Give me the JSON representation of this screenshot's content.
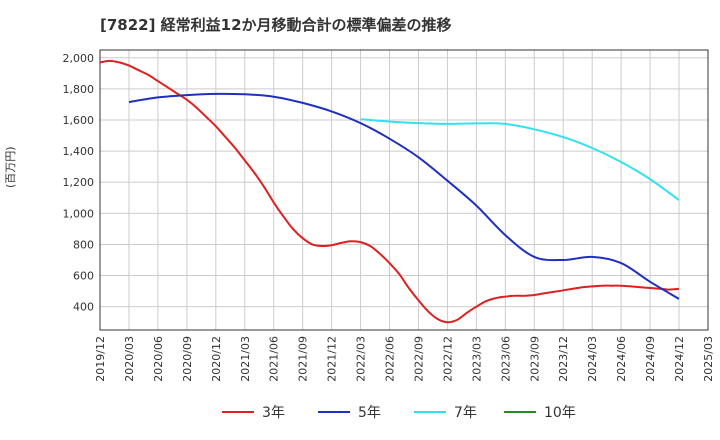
{
  "chart_data": {
    "type": "line",
    "title": "[7822]  経常利益12か月移動合計の標準偏差の推移",
    "ylabel": "(百万円)",
    "xlabel": "",
    "ylim": [
      250,
      2050
    ],
    "yticks": [
      400,
      600,
      800,
      1000,
      1200,
      1400,
      1600,
      1800,
      2000
    ],
    "ytick_labels": [
      "400",
      "600",
      "800",
      "1,000",
      "1,200",
      "1,400",
      "1,600",
      "1,800",
      "2,000"
    ],
    "xticks": [
      "2019/12",
      "2020/03",
      "2020/06",
      "2020/09",
      "2020/12",
      "2021/03",
      "2021/06",
      "2021/09",
      "2021/12",
      "2022/03",
      "2022/06",
      "2022/09",
      "2022/12",
      "2023/03",
      "2023/06",
      "2023/09",
      "2023/12",
      "2024/03",
      "2024/06",
      "2024/09",
      "2024/12",
      "2025/03"
    ],
    "grid": true,
    "legend_position": "bottom",
    "series": [
      {
        "name": "3年",
        "color": "#e02020",
        "x": [
          "2019/12",
          "2020/01",
          "2020/02",
          "2020/03",
          "2020/04",
          "2020/05",
          "2020/06",
          "2020/07",
          "2020/08",
          "2020/09",
          "2020/10",
          "2020/11",
          "2020/12",
          "2021/01",
          "2021/02",
          "2021/03",
          "2021/04",
          "2021/05",
          "2021/06",
          "2021/07",
          "2021/08",
          "2021/09",
          "2021/10",
          "2021/11",
          "2021/12",
          "2022/01",
          "2022/02",
          "2022/03",
          "2022/04",
          "2022/05",
          "2022/06",
          "2022/07",
          "2022/08",
          "2022/09",
          "2022/10",
          "2022/11",
          "2022/12",
          "2023/01",
          "2023/02",
          "2023/03",
          "2023/04",
          "2023/05",
          "2023/06",
          "2023/07",
          "2023/08",
          "2023/09",
          "2023/10",
          "2023/11",
          "2023/12",
          "2024/01",
          "2024/02",
          "2024/03",
          "2024/04",
          "2024/05",
          "2024/06",
          "2024/07",
          "2024/08",
          "2024/09",
          "2024/10",
          "2024/11",
          "2024/12"
        ],
        "values": [
          1970,
          1980,
          1970,
          1950,
          1920,
          1890,
          1850,
          1810,
          1770,
          1730,
          1680,
          1620,
          1560,
          1490,
          1420,
          1340,
          1260,
          1170,
          1070,
          980,
          900,
          840,
          800,
          790,
          795,
          810,
          820,
          815,
          790,
          740,
          680,
          610,
          520,
          440,
          370,
          320,
          300,
          315,
          360,
          400,
          435,
          455,
          465,
          470,
          470,
          475,
          485,
          495,
          505,
          515,
          525,
          530,
          535,
          535,
          535,
          530,
          525,
          520,
          515,
          510,
          515
        ],
        "values_note": ""
      },
      {
        "name": "5年",
        "color": "#1f2fbf",
        "x": [
          "2020/03",
          "2020/06",
          "2020/09",
          "2020/12",
          "2021/03",
          "2021/06",
          "2021/09",
          "2021/12",
          "2022/03",
          "2022/06",
          "2022/09",
          "2022/12",
          "2023/03",
          "2023/06",
          "2023/09",
          "2023/12",
          "2024/03",
          "2024/06",
          "2024/09",
          "2024/12"
        ],
        "values": [
          1715,
          1745,
          1760,
          1768,
          1765,
          1750,
          1710,
          1655,
          1580,
          1480,
          1360,
          1210,
          1050,
          860,
          720,
          700,
          720,
          680,
          560,
          450
        ]
      },
      {
        "name": "7年",
        "color": "#33e0f0",
        "x": [
          "2022/03",
          "2022/06",
          "2022/09",
          "2022/12",
          "2023/03",
          "2023/06",
          "2023/09",
          "2023/12",
          "2024/03",
          "2024/06",
          "2024/09",
          "2024/12"
        ],
        "values": [
          1605,
          1590,
          1580,
          1575,
          1578,
          1575,
          1540,
          1490,
          1420,
          1330,
          1220,
          1085
        ]
      },
      {
        "name": "10年",
        "color": "#2a8a2a",
        "x": [],
        "values": []
      }
    ]
  }
}
